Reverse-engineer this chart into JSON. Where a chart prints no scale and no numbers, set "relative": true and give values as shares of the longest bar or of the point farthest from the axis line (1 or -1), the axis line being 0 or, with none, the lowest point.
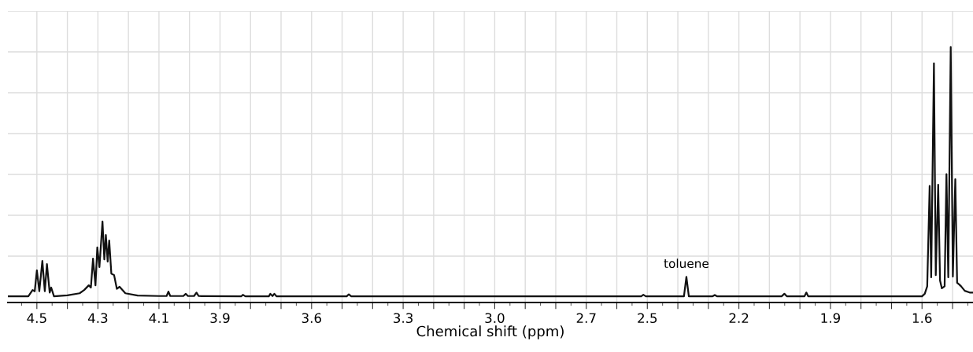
{
  "chart_data": {
    "type": "line",
    "relative": true,
    "xlabel": "Chemical shift (ppm)",
    "x": [
      4.595,
      4.528,
      4.514,
      4.507,
      4.5,
      4.492,
      4.482,
      4.474,
      4.467,
      4.458,
      4.453,
      4.444,
      4.4,
      4.36,
      4.345,
      4.33,
      4.323,
      4.316,
      4.308,
      4.302,
      4.295,
      4.285,
      4.279,
      4.274,
      4.268,
      4.263,
      4.256,
      4.247,
      4.238,
      4.229,
      4.21,
      4.17,
      4.1,
      4.075,
      4.069,
      4.063,
      4.02,
      4.012,
      4.005,
      3.985,
      3.977,
      3.97,
      3.83,
      3.825,
      3.817,
      3.74,
      3.735,
      3.728,
      3.722,
      3.715,
      3.485,
      3.478,
      3.47,
      2.52,
      2.513,
      2.505,
      2.38,
      2.372,
      2.364,
      2.286,
      2.279,
      2.272,
      2.06,
      2.051,
      2.043,
      1.985,
      1.979,
      1.973,
      1.6,
      1.591,
      1.583,
      1.575,
      1.57,
      1.561,
      1.555,
      1.547,
      1.541,
      1.535,
      1.526,
      1.52,
      1.514,
      1.506,
      1.499,
      1.491,
      1.485,
      1.478,
      1.472,
      1.46,
      1.444,
      1.433
    ],
    "series": [
      {
        "color": "#111111",
        "values": [
          0,
          0,
          0.025,
          0.02,
          0.104,
          0.02,
          0.142,
          0.02,
          0.129,
          0.015,
          0.035,
          0,
          0.004,
          0.012,
          0.025,
          0.044,
          0.035,
          0.151,
          0.044,
          0.196,
          0.117,
          0.3,
          0.148,
          0.246,
          0.139,
          0.224,
          0.091,
          0.085,
          0.03,
          0.038,
          0.012,
          0.003,
          0.001,
          0.001,
          0.019,
          0.001,
          0.001,
          0.01,
          0.001,
          0.001,
          0.015,
          0.001,
          0,
          0.006,
          0,
          0,
          0.01,
          0.001,
          0.01,
          0,
          0,
          0.008,
          0,
          0,
          0.006,
          0,
          0,
          0.078,
          0,
          0,
          0.005,
          0,
          0,
          0.01,
          0,
          0,
          0.015,
          0,
          0,
          0.01,
          0.04,
          0.443,
          0.076,
          0.935,
          0.085,
          0.448,
          0.063,
          0.032,
          0.04,
          0.49,
          0.076,
          1.0,
          0.079,
          0.47,
          0.054,
          0.047,
          0.04,
          0.022,
          0.015,
          0.015
        ]
      }
    ],
    "xlim": [
      4.595,
      1.433
    ],
    "xticks": [
      4.5,
      {
        "value": 4.4,
        "label": null
      },
      4.3,
      {
        "value": 4.2,
        "label": null
      },
      4.1,
      {
        "value": 4.0,
        "label": null
      },
      3.9,
      {
        "value": 3.8,
        "label": null
      },
      {
        "value": 3.7,
        "label": null
      },
      3.6,
      {
        "value": 3.5,
        "label": null
      },
      {
        "value": 3.4,
        "label": null
      },
      3.3,
      {
        "value": 3.2,
        "label": null
      },
      {
        "value": 3.1,
        "label": null
      },
      {
        "value": 3.0,
        "label": "3.0"
      },
      {
        "value": 2.9,
        "label": null
      },
      {
        "value": 2.8,
        "label": null
      },
      2.7,
      {
        "value": 2.6,
        "label": null
      },
      2.5,
      {
        "value": 2.4,
        "label": null
      },
      {
        "value": 2.3,
        "label": null
      },
      2.2,
      {
        "value": 2.1,
        "label": null
      },
      {
        "value": 2.0,
        "label": null
      },
      1.9,
      {
        "value": 1.8,
        "label": null
      },
      {
        "value": 1.7,
        "label": null
      },
      1.6,
      {
        "value": 1.5,
        "label": null
      }
    ],
    "grid": true,
    "annotations": [
      {
        "text": "toluene",
        "x": 2.372,
        "y": 0.078
      }
    ]
  }
}
